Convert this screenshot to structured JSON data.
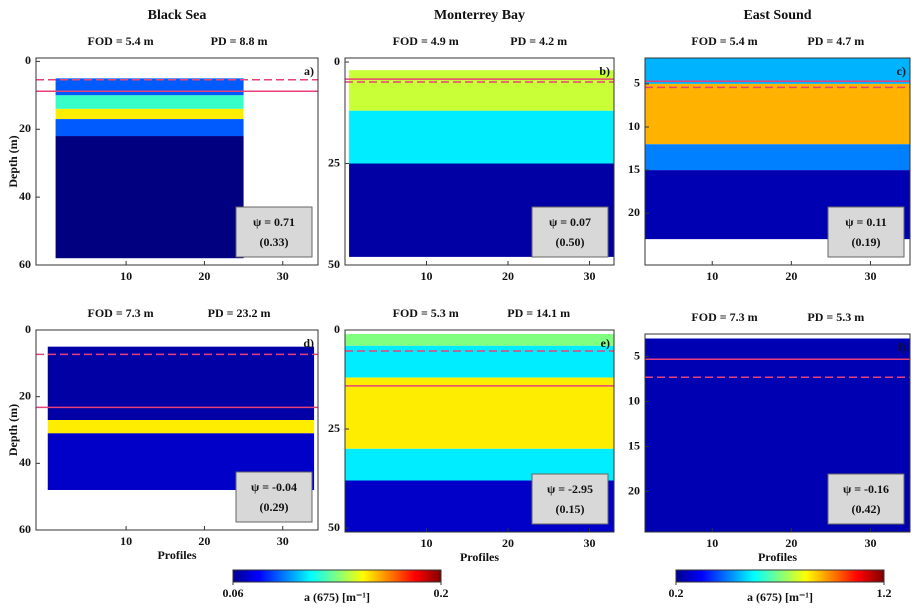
{
  "chart_data": [
    {
      "type": "heatmap",
      "title": "Black Sea",
      "panel_label": "a)",
      "fod": 5.4,
      "fod_label": "FOD = 5.4 m",
      "pd": 8.8,
      "pd_label": "PD = 8.8 m",
      "psi_label": "ψ = 0.71",
      "psi_err_label": "(0.33)",
      "ylabel": "Depth (m)",
      "xlim": [
        -1.5,
        34.5
      ],
      "xticks": [
        10,
        20,
        30
      ],
      "ylim": [
        -1,
        60
      ],
      "yticks": [
        0,
        20,
        40,
        60
      ],
      "x_extent": [
        1,
        25
      ],
      "depth_bins": [
        5,
        10,
        14,
        17,
        22,
        58
      ],
      "band_values": [
        0.09,
        0.12,
        0.15,
        0.09,
        0.06
      ]
    },
    {
      "type": "heatmap",
      "title": "Monterrey Bay",
      "panel_label": "b)",
      "fod": 4.9,
      "fod_label": "FOD = 4.9 m",
      "pd": 4.2,
      "pd_label": "PD = 4.2 m",
      "psi_label": "ψ = 0.07",
      "psi_err_label": "(0.50)",
      "xlim": [
        0,
        33
      ],
      "xticks": [
        10,
        20,
        30
      ],
      "ylim": [
        -1,
        50
      ],
      "yticks": [
        0,
        25,
        50
      ],
      "x_extent": [
        0.5,
        33
      ],
      "depth_bins": [
        2,
        12,
        25,
        48
      ],
      "band_values": [
        0.14,
        0.11,
        0.065
      ]
    },
    {
      "type": "heatmap",
      "title": "East Sound",
      "panel_label": "c)",
      "fod": 5.4,
      "fod_label": "FOD = 5.4 m",
      "pd": 4.7,
      "pd_label": "PD = 4.7 m",
      "psi_label": "ψ = 0.11",
      "psi_err_label": "(0.19)",
      "xlim": [
        1.5,
        35
      ],
      "xticks": [
        10,
        20,
        30
      ],
      "ylim": [
        2,
        26
      ],
      "yticks": [
        5,
        10,
        15,
        20
      ],
      "x_extent": [
        1.5,
        35
      ],
      "depth_bins": [
        2,
        5,
        12,
        15,
        23
      ],
      "band_values": [
        0.5,
        0.9,
        0.45,
        0.25
      ]
    },
    {
      "type": "heatmap",
      "panel_label": "d)",
      "fod": 7.3,
      "fod_label": "FOD = 7.3 m",
      "pd": 23.2,
      "pd_label": "PD = 23.2 m",
      "psi_label": "ψ = -0.04",
      "psi_err_label": "(0.29)",
      "ylabel": "Depth (m)",
      "xlabel": "Profiles",
      "xlim": [
        -1.5,
        34.5
      ],
      "xticks": [
        10,
        20,
        30
      ],
      "ylim": [
        0,
        60
      ],
      "yticks": [
        0,
        20,
        40,
        60
      ],
      "x_extent": [
        0,
        34
      ],
      "depth_bins": [
        5,
        27,
        31,
        48
      ],
      "band_values": [
        0.065,
        0.15,
        0.07
      ]
    },
    {
      "type": "heatmap",
      "panel_label": "e)",
      "fod": 5.3,
      "fod_label": "FOD = 5.3 m",
      "pd": 14.1,
      "pd_label": "PD = 14.1 m",
      "psi_label": "ψ = -2.95",
      "psi_err_label": "(0.15)",
      "xlabel": "Profiles",
      "xlim": [
        0,
        33
      ],
      "xticks": [
        10,
        20,
        30
      ],
      "ylim": [
        0,
        51
      ],
      "yticks": [
        0,
        25,
        50
      ],
      "x_extent": [
        0,
        33
      ],
      "depth_bins": [
        1,
        4,
        12,
        30,
        38,
        51
      ],
      "band_values": [
        0.13,
        0.11,
        0.15,
        0.11,
        0.07
      ]
    },
    {
      "type": "heatmap",
      "panel_label": "f)",
      "fod": 7.3,
      "fod_label": "FOD = 7.3 m",
      "pd": 5.3,
      "pd_label": "PD = 5.3 m",
      "psi_label": "ψ = -0.16",
      "psi_err_label": "(0.42)",
      "xlabel": "Profiles",
      "xlim": [
        1.5,
        35
      ],
      "xticks": [
        10,
        20,
        30
      ],
      "ylim": [
        2.5,
        24.5
      ],
      "yticks": [
        5,
        10,
        15,
        20
      ],
      "x_extent": [
        1.5,
        35
      ],
      "depth_bins": [
        3,
        24.5
      ],
      "band_values": [
        0.25
      ]
    },
    {
      "type": "colorbar",
      "label": "a (675) [m⁻¹]",
      "clim": [
        0.06,
        0.2
      ],
      "ticks": [
        0.06,
        0.2
      ]
    },
    {
      "type": "colorbar",
      "label": "a (675) [m⁻¹]",
      "clim": [
        0.2,
        1.2
      ],
      "ticks": [
        0.2,
        1.2
      ]
    }
  ]
}
